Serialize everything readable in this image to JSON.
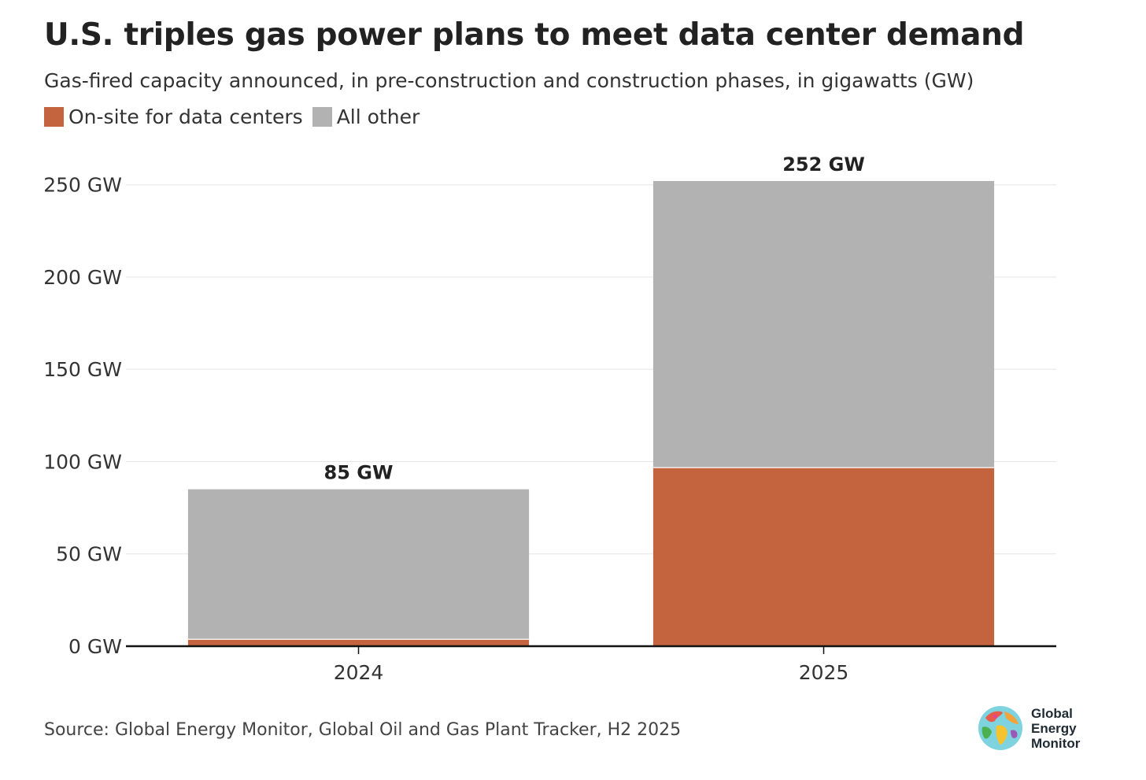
{
  "title": "U.S. triples gas power plans to meet data center demand",
  "subtitle": "Gas-fired capacity announced, in pre-construction and construction phases, in gigawatts (GW)",
  "legend": [
    {
      "label": "On-site for data centers",
      "color": "#c4643f"
    },
    {
      "label": "All other",
      "color": "#b2b2b2"
    }
  ],
  "source": "Source: Global Energy Monitor, Global Oil and Gas Plant Tracker, H2 2025",
  "logo": {
    "lines": [
      "Global",
      "Energy",
      "Monitor"
    ],
    "icon": "globe-icon"
  },
  "chart_data": {
    "type": "bar",
    "stacked": true,
    "categories": [
      "2024",
      "2025"
    ],
    "series": [
      {
        "name": "On-site for data centers",
        "values": [
          4,
          97
        ],
        "color": "#c4643f"
      },
      {
        "name": "All other",
        "values": [
          81,
          155
        ],
        "color": "#b2b2b2"
      }
    ],
    "totals": [
      85,
      252
    ],
    "total_labels": [
      "85 GW",
      "252 GW"
    ],
    "y_ticks": [
      0,
      50,
      100,
      150,
      200,
      250
    ],
    "y_tick_labels": [
      "0 GW",
      "50 GW",
      "100 GW",
      "150 GW",
      "200 GW",
      "250 GW"
    ],
    "ylim": [
      0,
      252
    ],
    "grid": true,
    "legend_position": "top-left"
  }
}
